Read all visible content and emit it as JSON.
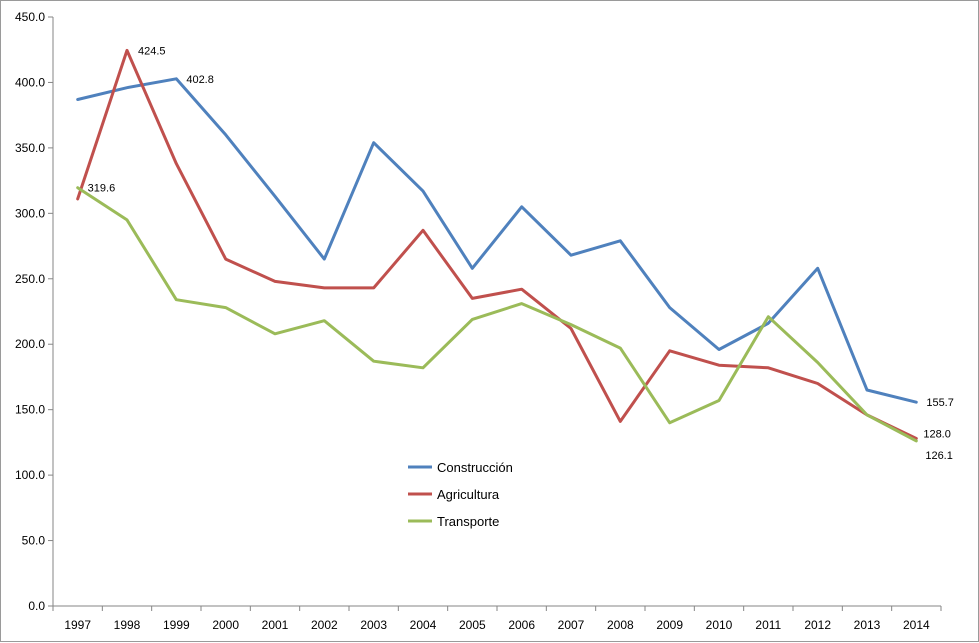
{
  "chart_data": {
    "type": "line",
    "title": "",
    "xlabel": "",
    "ylabel": "",
    "ylim": [
      0,
      450
    ],
    "y_ticks": [
      "0.0",
      "50.0",
      "100.0",
      "150.0",
      "200.0",
      "250.0",
      "300.0",
      "350.0",
      "400.0",
      "450.0"
    ],
    "categories": [
      "1997",
      "1998",
      "1999",
      "2000",
      "2001",
      "2002",
      "2003",
      "2004",
      "2005",
      "2006",
      "2007",
      "2008",
      "2009",
      "2010",
      "2011",
      "2012",
      "2013",
      "2014"
    ],
    "grid": false,
    "legend_position": "center-bottom",
    "series": [
      {
        "name": "Construcción",
        "color": "#4F81BD",
        "values": [
          387,
          396,
          402.8,
          360,
          313,
          265,
          354,
          317,
          258,
          305,
          268,
          279,
          228,
          196,
          216,
          258,
          165,
          155.7
        ],
        "labels": [
          {
            "index": 2,
            "text": "402.8"
          },
          {
            "index": 17,
            "text": "155.7"
          }
        ]
      },
      {
        "name": "Agricultura",
        "color": "#C0504D",
        "values": [
          311,
          424.5,
          338,
          265,
          248,
          243,
          243,
          287,
          235,
          242,
          212,
          141,
          195,
          184,
          182,
          170,
          146,
          128.0
        ],
        "labels": [
          {
            "index": 1,
            "text": "424.5"
          },
          {
            "index": 17,
            "text": "128.0"
          }
        ]
      },
      {
        "name": "Transporte",
        "color": "#9BBB59",
        "values": [
          319.6,
          295,
          234,
          228,
          208,
          218,
          187,
          182,
          219,
          231,
          215,
          197,
          140,
          157,
          221,
          186,
          146,
          126.1
        ],
        "labels": [
          {
            "index": 0,
            "text": "319.6"
          },
          {
            "index": 17,
            "text": "126.1"
          }
        ]
      }
    ]
  }
}
